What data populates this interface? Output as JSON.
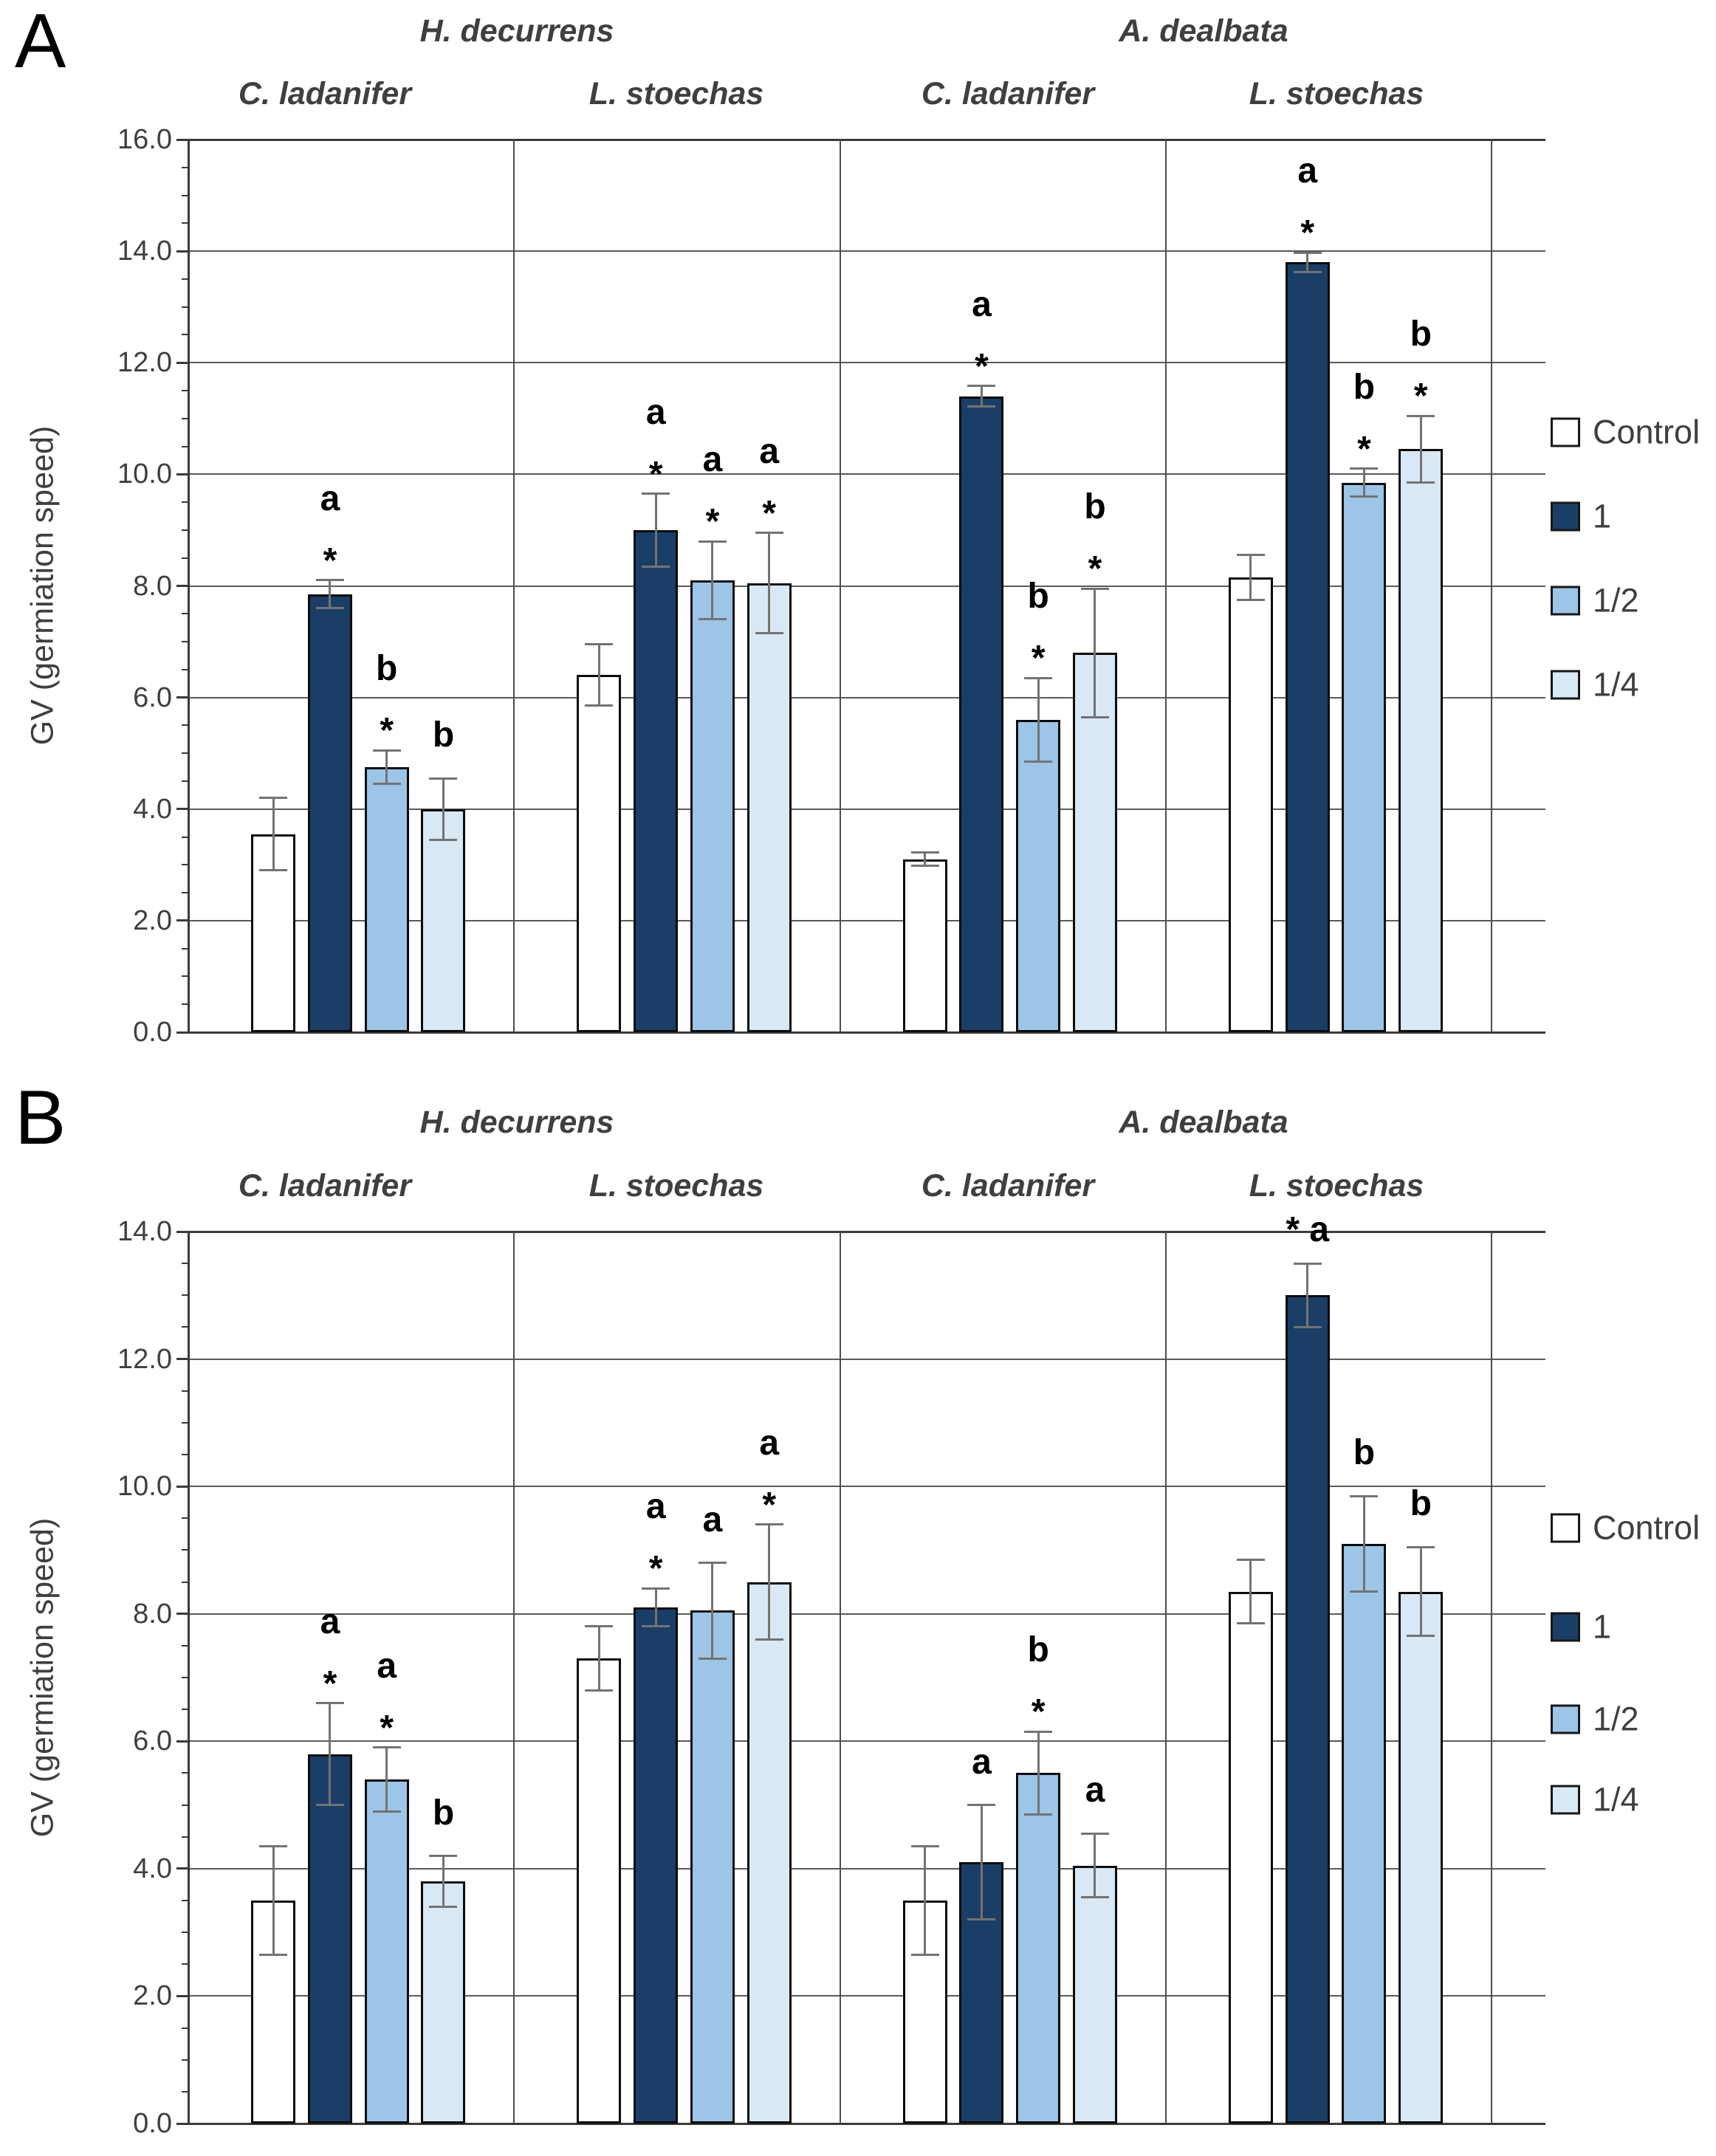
{
  "chart_data": [
    {
      "type": "bar",
      "panel_label": "A",
      "ylabel": "GV (germiation speed)",
      "ylim": [
        0,
        16
      ],
      "ytick_step": 2,
      "ytick_labels": [
        "0.0",
        "2.0",
        "4.0",
        "6.0",
        "8.0",
        "10.0",
        "12.0",
        "14.0",
        "16.0"
      ],
      "grid": "on",
      "legend_position": "right",
      "legend": [
        "Control",
        "1",
        "1/2",
        "1/4"
      ],
      "species_headers": [
        "H. decurrens",
        "A. dealbata"
      ],
      "plant_headers": [
        "C. ladanifer",
        "L. stoechas",
        "C. ladanifer",
        "L. stoechas"
      ],
      "groups": [
        {
          "species": "H. decurrens",
          "plant": "C. ladanifer",
          "bars": [
            {
              "treatment": "Control",
              "value": 3.55,
              "error": 0.65,
              "sig_letter": "",
              "sig_star": false
            },
            {
              "treatment": "1",
              "value": 7.85,
              "error": 0.25,
              "sig_letter": "a",
              "sig_star": true
            },
            {
              "treatment": "1/2",
              "value": 4.75,
              "error": 0.3,
              "sig_letter": "b",
              "sig_star": true
            },
            {
              "treatment": "1/4",
              "value": 4.0,
              "error": 0.55,
              "sig_letter": "b",
              "sig_star": false
            }
          ]
        },
        {
          "species": "H. decurrens",
          "plant": "L. stoechas",
          "bars": [
            {
              "treatment": "Control",
              "value": 6.4,
              "error": 0.55,
              "sig_letter": "",
              "sig_star": false
            },
            {
              "treatment": "1",
              "value": 9.0,
              "error": 0.65,
              "sig_letter": "a",
              "sig_star": true
            },
            {
              "treatment": "1/2",
              "value": 8.1,
              "error": 0.7,
              "sig_letter": "a",
              "sig_star": true
            },
            {
              "treatment": "1/4",
              "value": 8.05,
              "error": 0.9,
              "sig_letter": "a",
              "sig_star": true
            }
          ]
        },
        {
          "species": "A. dealbata",
          "plant": "C. ladanifer",
          "bars": [
            {
              "treatment": "Control",
              "value": 3.1,
              "error": 0.12,
              "sig_letter": "",
              "sig_star": false
            },
            {
              "treatment": "1",
              "value": 11.4,
              "error": 0.18,
              "sig_letter": "a",
              "sig_star": true
            },
            {
              "treatment": "1/2",
              "value": 5.6,
              "error": 0.75,
              "sig_letter": "b",
              "sig_star": true
            },
            {
              "treatment": "1/4",
              "value": 6.8,
              "error": 1.15,
              "sig_letter": "b",
              "sig_star": true
            }
          ]
        },
        {
          "species": "A. dealbata",
          "plant": "L. stoechas",
          "bars": [
            {
              "treatment": "Control",
              "value": 8.15,
              "error": 0.4,
              "sig_letter": "",
              "sig_star": false
            },
            {
              "treatment": "1",
              "value": 13.8,
              "error": 0.17,
              "sig_letter": "a",
              "sig_star": true
            },
            {
              "treatment": "1/2",
              "value": 9.85,
              "error": 0.25,
              "sig_letter": "b",
              "sig_star": true
            },
            {
              "treatment": "1/4",
              "value": 10.45,
              "error": 0.6,
              "sig_letter": "b",
              "sig_star": true
            }
          ]
        }
      ]
    },
    {
      "type": "bar",
      "panel_label": "B",
      "ylabel": "GV (germiation speed)",
      "ylim": [
        0,
        14
      ],
      "ytick_step": 2,
      "ytick_labels": [
        "0.0",
        "2.0",
        "4.0",
        "6.0",
        "8.0",
        "10.0",
        "12.0",
        "14.0"
      ],
      "grid": "on",
      "legend_position": "right",
      "legend": [
        "Control",
        "1",
        "1/2",
        "1/4"
      ],
      "species_headers": [
        "H. decurrens",
        "A. dealbata"
      ],
      "plant_headers": [
        "C. ladanifer",
        "L. stoechas",
        "C. ladanifer",
        "L. stoechas"
      ],
      "groups": [
        {
          "species": "H. decurrens",
          "plant": "C. ladanifer",
          "bars": [
            {
              "treatment": "Control",
              "value": 3.5,
              "error": 0.85,
              "sig_letter": "",
              "sig_star": false
            },
            {
              "treatment": "1",
              "value": 5.8,
              "error": 0.8,
              "sig_letter": "a",
              "sig_star": true
            },
            {
              "treatment": "1/2",
              "value": 5.4,
              "error": 0.5,
              "sig_letter": "a",
              "sig_star": true
            },
            {
              "treatment": "1/4",
              "value": 3.8,
              "error": 0.4,
              "sig_letter": "b",
              "sig_star": false
            }
          ]
        },
        {
          "species": "H. decurrens",
          "plant": "L. stoechas",
          "bars": [
            {
              "treatment": "Control",
              "value": 7.3,
              "error": 0.5,
              "sig_letter": "",
              "sig_star": false
            },
            {
              "treatment": "1",
              "value": 8.1,
              "error": 0.3,
              "sig_letter": "a",
              "sig_star": true
            },
            {
              "treatment": "1/2",
              "value": 8.05,
              "error": 0.75,
              "sig_letter": "a",
              "sig_star": false
            },
            {
              "treatment": "1/4",
              "value": 8.5,
              "error": 0.9,
              "sig_letter": "a",
              "sig_star": true
            }
          ]
        },
        {
          "species": "A. dealbata",
          "plant": "C. ladanifer",
          "bars": [
            {
              "treatment": "Control",
              "value": 3.5,
              "error": 0.85,
              "sig_letter": "",
              "sig_star": false
            },
            {
              "treatment": "1",
              "value": 4.1,
              "error": 0.9,
              "sig_letter": "a",
              "sig_star": false
            },
            {
              "treatment": "1/2",
              "value": 5.5,
              "error": 0.65,
              "sig_letter": "b",
              "sig_star": true
            },
            {
              "treatment": "1/4",
              "value": 4.05,
              "error": 0.5,
              "sig_letter": "a",
              "sig_star": false
            }
          ]
        },
        {
          "species": "A. dealbata",
          "plant": "L. stoechas",
          "bars": [
            {
              "treatment": "Control",
              "value": 8.35,
              "error": 0.5,
              "sig_letter": "",
              "sig_star": false
            },
            {
              "treatment": "1",
              "value": 13.0,
              "error": 0.5,
              "sig_letter": "a",
              "sig_star": true,
              "sig_inline": true
            },
            {
              "treatment": "1/2",
              "value": 9.1,
              "error": 0.75,
              "sig_letter": "b",
              "sig_star": false
            },
            {
              "treatment": "1/4",
              "value": 8.35,
              "error": 0.7,
              "sig_letter": "b",
              "sig_star": false
            }
          ]
        }
      ]
    }
  ],
  "colors": {
    "control": "#ffffff",
    "full_dose": "#1a3e66",
    "half_dose": "#9cc5e8",
    "quarter_dose": "#d9e8f5",
    "bar_border": "#0c0c0c",
    "error_bar": "#737373",
    "gridline": "#5a5a5a",
    "text": "#3f3f3f",
    "annotation": "#000000"
  }
}
